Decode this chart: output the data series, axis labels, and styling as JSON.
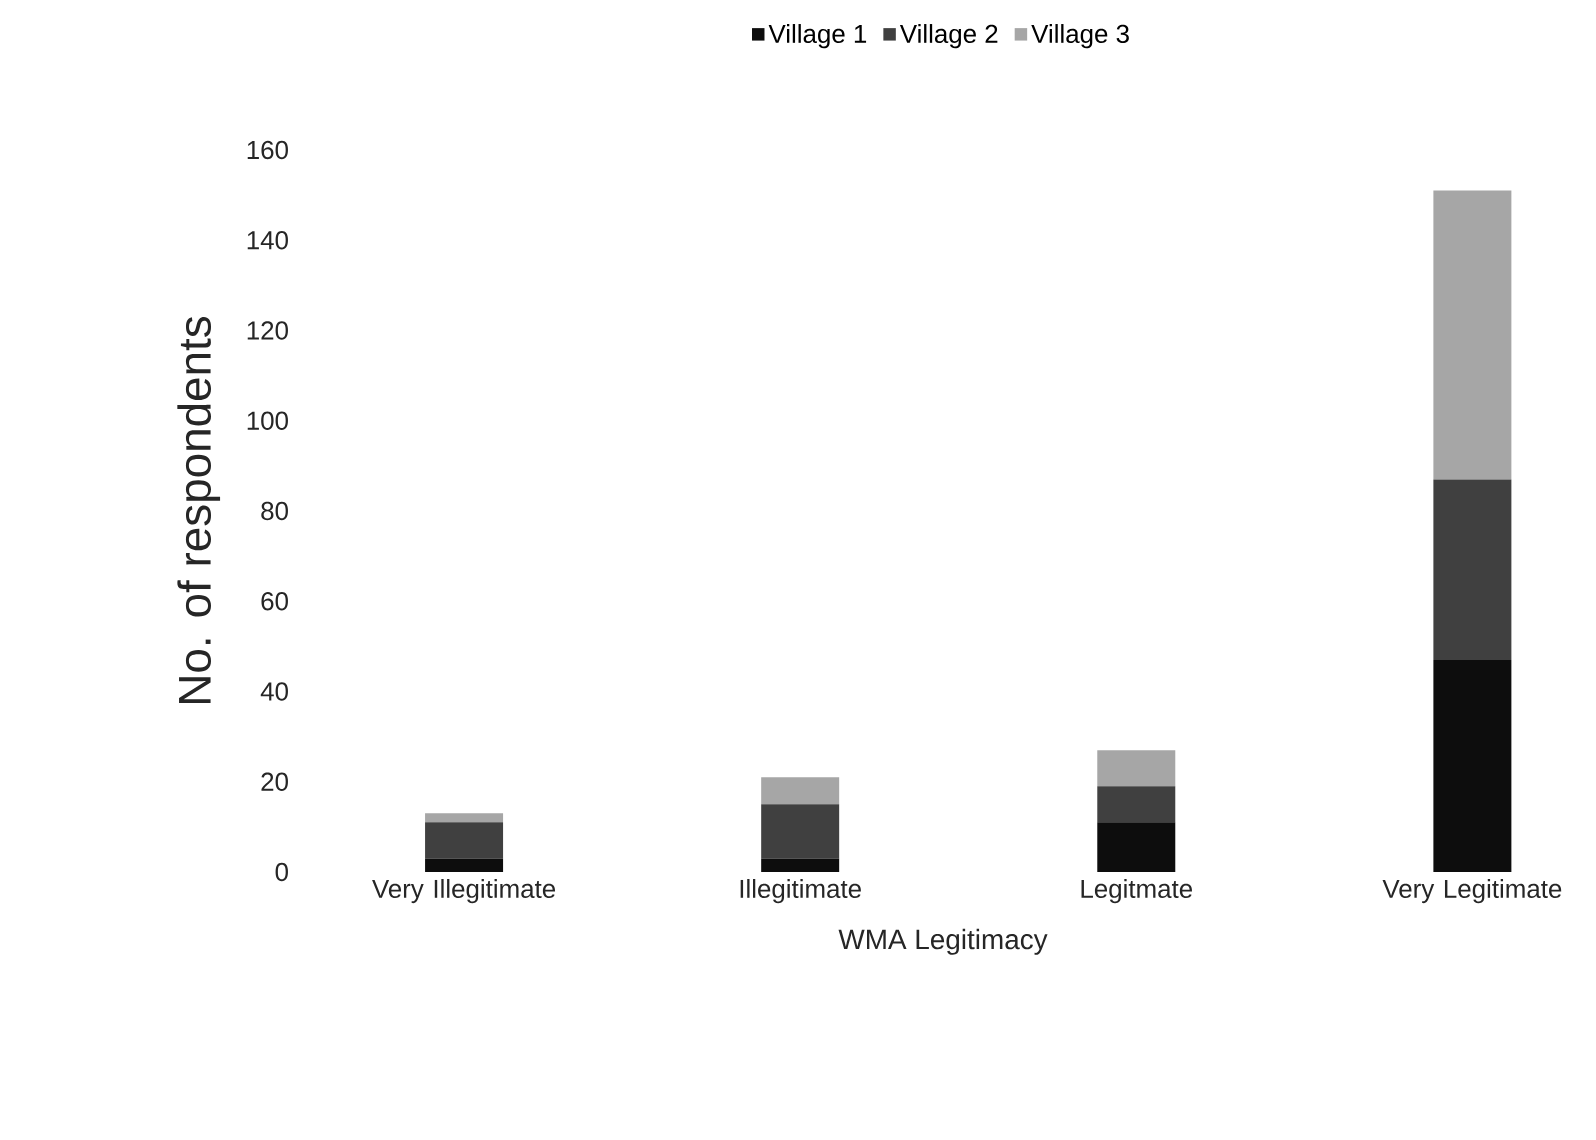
{
  "chart_data": {
    "type": "bar",
    "stacked": true,
    "xlabel": "WMA Legitimacy",
    "ylabel": "No. of respondents",
    "categories": [
      "Very Illegitimate",
      "Illegitimate",
      "Legitmate",
      "Very Legitimate"
    ],
    "series": [
      {
        "name": "Village 1",
        "color": "#0d0d0d",
        "values": [
          3,
          3,
          11,
          47
        ]
      },
      {
        "name": "Village 2",
        "color": "#404040",
        "values": [
          8,
          12,
          8,
          40
        ]
      },
      {
        "name": "Village 3",
        "color": "#a6a6a6",
        "values": [
          2,
          6,
          8,
          64
        ]
      }
    ],
    "ylim": [
      0,
      160
    ],
    "yticks": [
      0,
      20,
      40,
      60,
      80,
      100,
      120,
      140,
      160
    ],
    "legend": "top"
  }
}
